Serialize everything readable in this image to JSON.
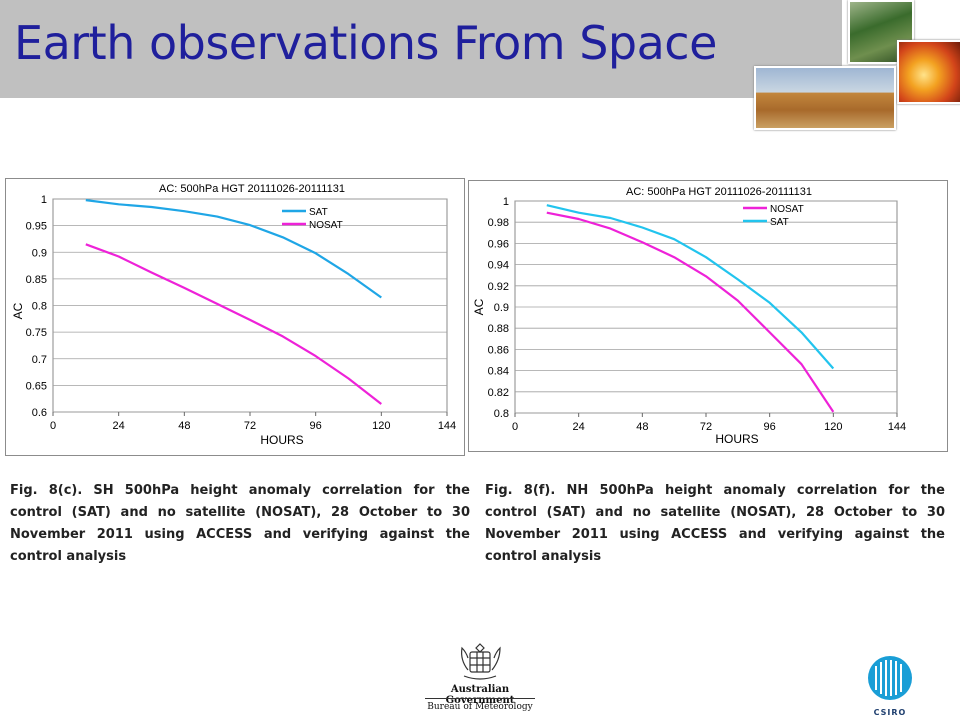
{
  "header": {
    "title": "Earth observations From Space",
    "photos": [
      "forest",
      "fire",
      "field"
    ]
  },
  "charts": {
    "left": {
      "caption": "Fig. 8(c). SH 500hPa height anomaly correlation for the control (SAT) and no satellite (NOSAT), 28 October to 30 November 2011 using ACCESS and verifying against the control analysis"
    },
    "right": {
      "caption": "Fig. 8(f). NH 500hPa height anomaly correlation for the control (SAT) and no satellite (NOSAT), 28 October to 30 November 2011 using ACCESS and verifying against the control analysis"
    }
  },
  "chart_data": [
    {
      "type": "line",
      "title": "AC: 500hPa HGT 20111026-20111131",
      "xlabel": "HOURS",
      "ylabel": "AC",
      "xlim": [
        0,
        144
      ],
      "ylim": [
        0.6,
        1.0
      ],
      "xticks": [
        0,
        24,
        48,
        72,
        96,
        120,
        144
      ],
      "yticks": [
        0.6,
        0.65,
        0.7,
        0.75,
        0.8,
        0.85,
        0.9,
        0.95,
        1
      ],
      "ytick_labels": [
        "0.6",
        "0.65",
        "0.7",
        "0.75",
        "0.8",
        "0.85",
        "0.9",
        "0.95",
        "1"
      ],
      "grid": true,
      "legend_position": "top-right",
      "series": [
        {
          "name": "SAT",
          "color": "#1fa6e6",
          "x": [
            12,
            24,
            36,
            48,
            60,
            72,
            84,
            96,
            108,
            120
          ],
          "y": [
            0.998,
            0.99,
            0.985,
            0.977,
            0.967,
            0.951,
            0.928,
            0.898,
            0.859,
            0.815
          ]
        },
        {
          "name": "NOSAT",
          "color": "#ee22d8",
          "x": [
            12,
            24,
            36,
            48,
            60,
            72,
            84,
            96,
            108,
            120
          ],
          "y": [
            0.915,
            0.892,
            0.862,
            0.833,
            0.803,
            0.773,
            0.742,
            0.705,
            0.663,
            0.615
          ]
        }
      ]
    },
    {
      "type": "line",
      "title": "AC: 500hPa HGT 20111026-20111131",
      "xlabel": "HOURS",
      "ylabel": "AC",
      "xlim": [
        0,
        144
      ],
      "ylim": [
        0.8,
        1.0
      ],
      "xticks": [
        0,
        24,
        48,
        72,
        96,
        120,
        144
      ],
      "yticks": [
        0.8,
        0.82,
        0.84,
        0.86,
        0.88,
        0.9,
        0.92,
        0.94,
        0.96,
        0.98,
        1
      ],
      "ytick_labels": [
        "0.8",
        "0.82",
        "0.84",
        "0.86",
        "0.88",
        "0.9",
        "0.92",
        "0.94",
        "0.96",
        "0.98",
        "1"
      ],
      "grid": true,
      "legend_position": "top-right",
      "series": [
        {
          "name": "NOSAT",
          "color": "#ee22d8",
          "x": [
            12,
            24,
            36,
            48,
            60,
            72,
            84,
            96,
            108,
            120
          ],
          "y": [
            0.989,
            0.983,
            0.974,
            0.961,
            0.947,
            0.929,
            0.906,
            0.876,
            0.846,
            0.801
          ]
        },
        {
          "name": "SAT",
          "color": "#22c4ee",
          "x": [
            12,
            24,
            36,
            48,
            60,
            72,
            84,
            96,
            108,
            120
          ],
          "y": [
            0.996,
            0.989,
            0.984,
            0.975,
            0.964,
            0.947,
            0.926,
            0.904,
            0.876,
            0.842
          ]
        }
      ]
    }
  ],
  "footer": {
    "gov_line1": "Australian Government",
    "gov_line2": "Bureau of Meteorology",
    "csiro_label": "CSIRO"
  }
}
